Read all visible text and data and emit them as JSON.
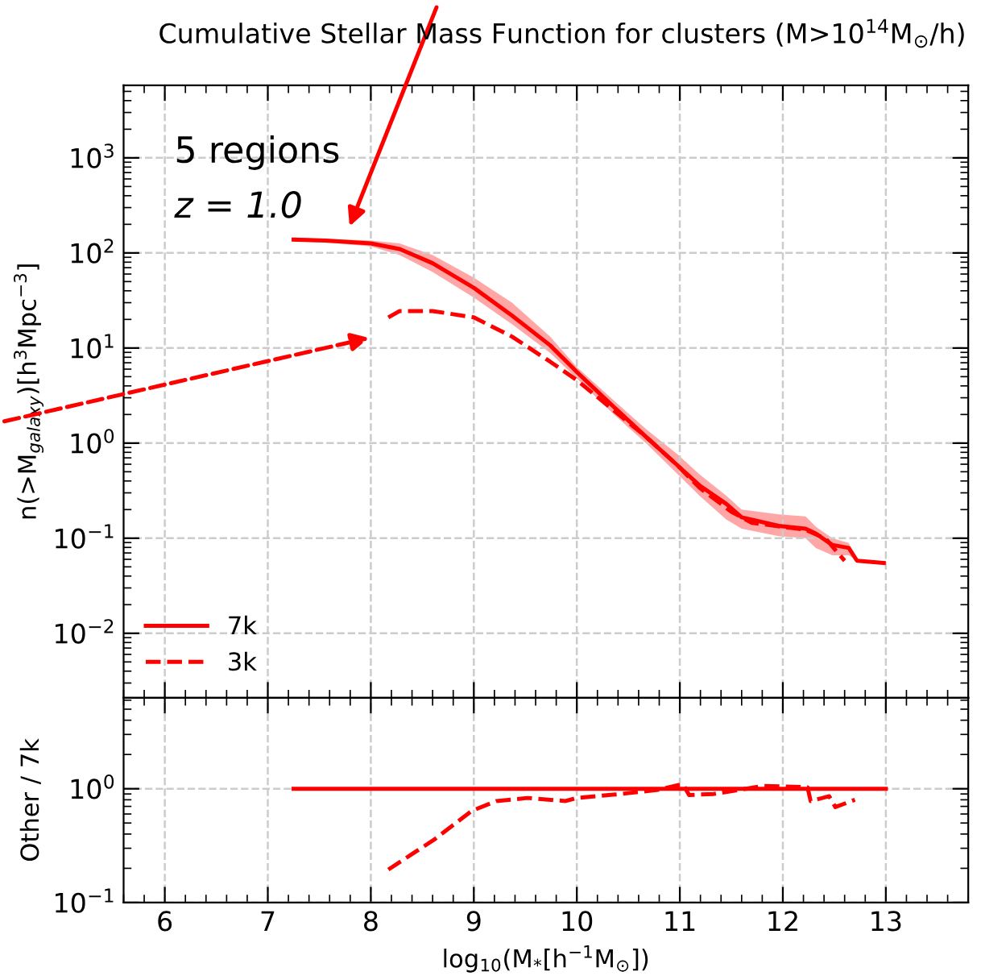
{
  "chart_data": [
    {
      "type": "line",
      "title": "Cumulative Stellar Mass Function for clusters (M>10$^{14}$M$_{⊙}$/h)",
      "ylabel": "n(>M$_{galaxy}$)[h$^{3}$Mpc$^{−3}$]",
      "annotations": [
        "5 regions",
        "z = 1.0"
      ],
      "xlim": [
        5.6,
        13.8
      ],
      "xticks": [
        6,
        7,
        8,
        9,
        10,
        11,
        12,
        13
      ],
      "ylim": [
        0.0021,
        5800
      ],
      "log": "y",
      "yticks": [
        {
          "value": 0.01,
          "label": "10$^{−2}$"
        },
        {
          "value": 0.1,
          "label": "10$^{−1}$"
        },
        {
          "value": 1,
          "label": "10$^{0}$"
        },
        {
          "value": 10,
          "label": "10$^{1}$"
        },
        {
          "value": 100,
          "label": "10$^{2}$"
        },
        {
          "value": 1000,
          "label": "10$^{3}$"
        }
      ],
      "tick_labels": "y",
      "grid": true,
      "legend": "bottom left",
      "series": [
        {
          "name": "7k",
          "color": "#ff0000",
          "line_style": "solid",
          "x": [
            7.25,
            7.56,
            8,
            8.28,
            8.6,
            9,
            9.37,
            9.74,
            10,
            10.36,
            10.67,
            10.98,
            11.19,
            11.45,
            11.6,
            11.96,
            12.22,
            12.32,
            12.48,
            12.64,
            12.72,
            12.98
          ],
          "values": [
            138,
            135,
            126,
            110,
            78,
            43,
            22,
            10.7,
            5.6,
            2.4,
            1.17,
            0.58,
            0.36,
            0.23,
            0.166,
            0.135,
            0.126,
            0.112,
            0.085,
            0.079,
            0.058,
            0.055
          ],
          "upper": [
            145,
            141,
            135,
            126,
            95,
            55,
            30,
            13.2,
            6.3,
            2.8,
            1.41,
            0.76,
            0.47,
            0.28,
            0.2,
            0.178,
            0.17,
            0.132,
            0.1,
            0.089,
            0.058,
            0.055
          ],
          "lower": [
            132,
            129,
            117,
            95,
            63,
            34,
            17.8,
            8.9,
            4.8,
            2.0,
            1.0,
            0.47,
            0.28,
            0.158,
            0.126,
            0.105,
            0.1,
            0.079,
            0.066,
            0.066,
            0.058,
            0.055
          ]
        },
        {
          "name": "3k",
          "color": "#ff0000",
          "line_style": "dashed",
          "x": [
            8.17,
            8.28,
            8.6,
            9,
            9.37,
            9.74,
            10,
            10.36,
            10.67,
            10.98,
            11.19,
            11.5,
            11.7,
            12.22,
            12.42,
            12.53,
            12.6
          ],
          "values": [
            21,
            24.5,
            24.5,
            21,
            13.2,
            7.2,
            4.6,
            2.2,
            1.17,
            0.58,
            0.34,
            0.19,
            0.145,
            0.123,
            0.098,
            0.071,
            0.058
          ]
        }
      ]
    },
    {
      "type": "line",
      "xlabel": "log$_{10}$(M$_{*}$[h$^{−1}$M$_{⊙}$])",
      "ylabel": "Other / 7k",
      "xlim": [
        5.6,
        13.8
      ],
      "xticks": [
        6,
        7,
        8,
        9,
        10,
        11,
        12,
        13
      ],
      "ylim": [
        0.1,
        6.3
      ],
      "log": "y",
      "yticks": [
        {
          "value": 0.1,
          "label": "10$^{−1}$"
        },
        {
          "value": 1,
          "label": "10$^{0}$"
        }
      ],
      "grid": true,
      "series": [
        {
          "color": "#ff0000",
          "line_style": "solid",
          "x": [
            7.25,
            13
          ],
          "values": [
            1,
            1
          ]
        },
        {
          "color": "#ff0000",
          "line_style": "dashed",
          "x": [
            8.17,
            8.62,
            8.98,
            9.22,
            9.52,
            9.89,
            10.0,
            10.43,
            10.79,
            11.03,
            11.09,
            11.33,
            11.64,
            11.81,
            12.24,
            12.27,
            12.45,
            12.51,
            12.7
          ],
          "values": [
            0.195,
            0.36,
            0.64,
            0.78,
            0.83,
            0.78,
            0.83,
            0.9,
            0.98,
            1.1,
            0.88,
            0.9,
            1.0,
            1.06,
            1.03,
            0.78,
            0.86,
            0.69,
            0.8
          ]
        }
      ]
    }
  ]
}
